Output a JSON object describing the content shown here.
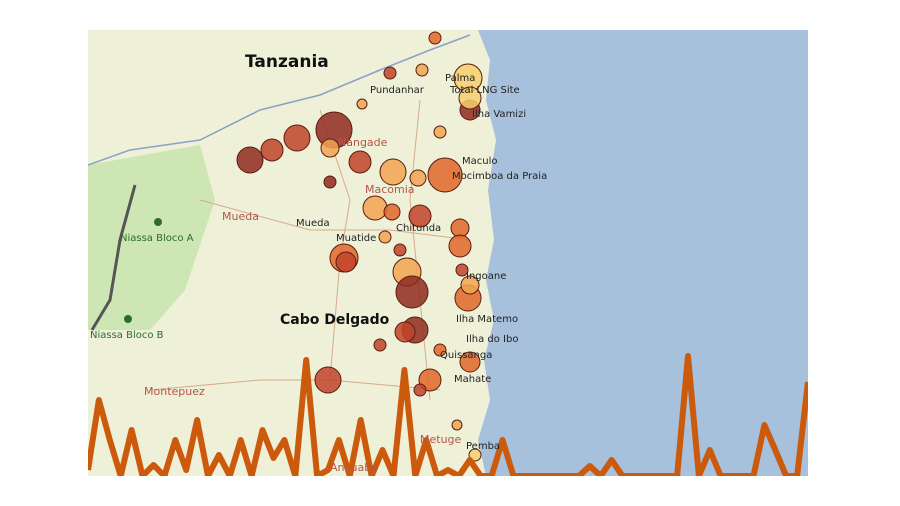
{
  "map": {
    "country_label": "Tanzania",
    "province_label": "Cabo Delgado",
    "park_labels": [
      "Niassa Bloco A",
      "Niassa Bloco B"
    ],
    "district_labels": [
      "Mueda",
      "Montepuez",
      "Nangade",
      "Macomia",
      "Metuge",
      "Ancuabe"
    ],
    "town_labels": [
      "Pundanhar",
      "Palma",
      "Total LNG Site",
      "Ilha Vamizi",
      "Maculo",
      "Mocimboa da Praia",
      "Mueda",
      "Muatide",
      "Chitunda",
      "Ingoane",
      "Ilha Matemo",
      "Ilha do Ibo",
      "Quissanga",
      "Mahate",
      "Pemba"
    ]
  }
}
